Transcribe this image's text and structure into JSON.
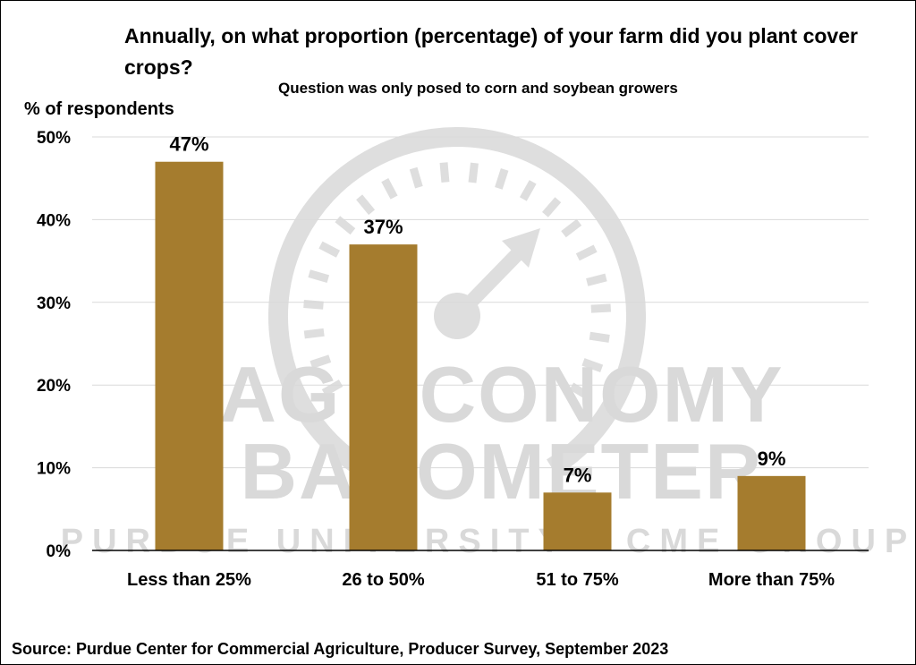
{
  "chart_data": {
    "type": "bar",
    "title": "Annually, on what proportion (percentage) of your farm did you plant cover crops?",
    "subtitle": "Question was only posed to corn and soybean growers",
    "ylabel": "% of respondents",
    "xlabel": "",
    "categories": [
      "Less than 25%",
      "26 to 50%",
      "51 to 75%",
      "More than 75%"
    ],
    "values": [
      47,
      37,
      7,
      9
    ],
    "data_labels": [
      "47%",
      "37%",
      "7%",
      "9%"
    ],
    "ylim": [
      0,
      50
    ],
    "yticks": [
      0,
      10,
      20,
      30,
      40,
      50
    ],
    "ytick_labels": [
      "0%",
      "10%",
      "20%",
      "30%",
      "40%",
      "50%"
    ],
    "grid": true,
    "legend": "none",
    "bar_color": "#A57C2E",
    "gridline_color": "#d9d9d9"
  },
  "source": "Source: Purdue Center for Commercial Agriculture, Producer Survey, September 2023",
  "watermark": {
    "line1": "AG ECONOMY",
    "line2": "BAROMETER",
    "line3": "PURDUE UNIVERSITY · CME GROUP"
  }
}
